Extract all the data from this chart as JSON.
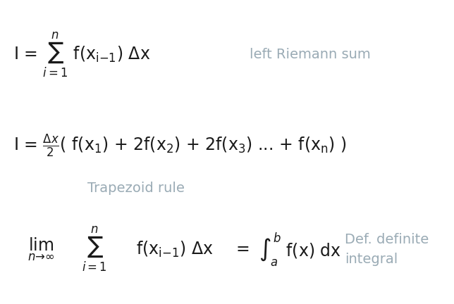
{
  "bg_color": "#ffffff",
  "math_color": "#1a1a1a",
  "label_color": "#9aabb5",
  "figsize": [
    6.44,
    4.32
  ],
  "dpi": 100,
  "math_fontsize": 17,
  "label_fontsize": 14
}
